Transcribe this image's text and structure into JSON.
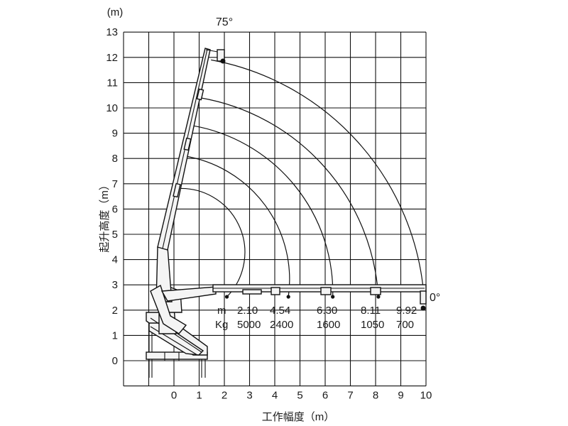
{
  "chart_data": {
    "type": "diagram",
    "y_unit": "(m)",
    "y_title": "起升高度（m）",
    "x_title": "工作幅度（m）",
    "x_ticks": [
      0,
      1,
      2,
      3,
      4,
      5,
      6,
      7,
      8,
      9,
      10
    ],
    "y_ticks": [
      0,
      1,
      2,
      3,
      4,
      5,
      6,
      7,
      8,
      9,
      10,
      11,
      12,
      13
    ],
    "xlim": [
      -2,
      10
    ],
    "ylim": [
      -1,
      13
    ],
    "angle_max_label": "75°",
    "angle_min_label": "0°",
    "radius_header": "m",
    "load_header": "Kg",
    "load_points": [
      {
        "radius": "2.10",
        "load": "5000",
        "x": 2.1,
        "tip_height": 6.8
      },
      {
        "radius": "4.54",
        "load": "2400",
        "x": 4.54,
        "tip_height": 8.1
      },
      {
        "radius": "6.30",
        "load": "1600",
        "x": 6.3,
        "tip_height": 9.3
      },
      {
        "radius": "8.11",
        "load": "1050",
        "x": 8.11,
        "tip_height": 10.4
      },
      {
        "radius": "9.92",
        "load": "700",
        "x": 9.92,
        "tip_height": 11.9
      }
    ]
  }
}
